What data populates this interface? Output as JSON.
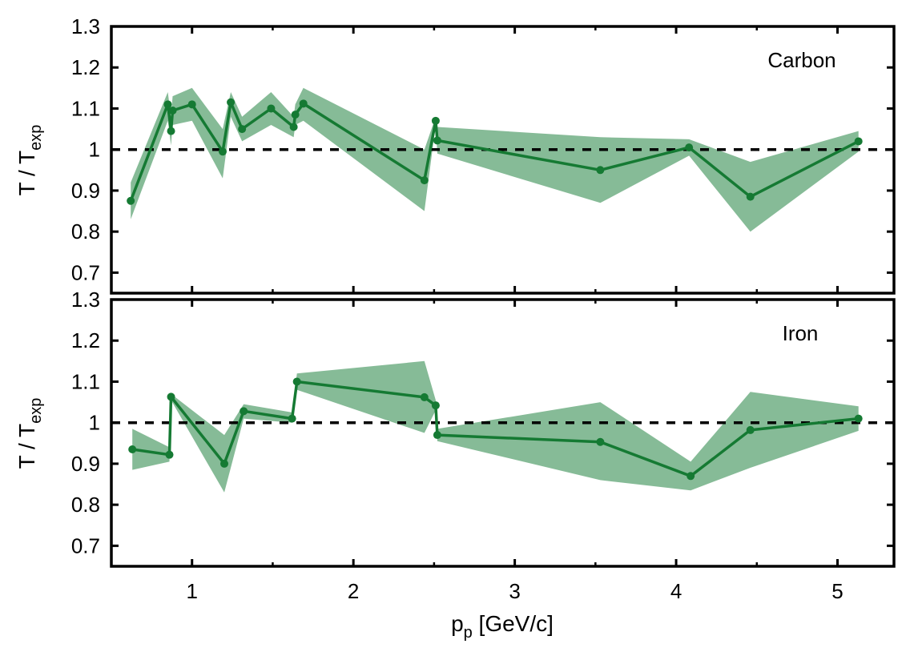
{
  "chart_data": [
    {
      "type": "line",
      "annotation": "Carbon",
      "ylabel": {
        "main": "T / T",
        "sub": "exp"
      },
      "xlim": [
        0.5,
        5.35
      ],
      "ylim": [
        0.65,
        1.3
      ],
      "yticks": [
        "0.7",
        "0.8",
        "0.9",
        "1",
        "1.1",
        "1.2",
        "1.3"
      ],
      "reference_line": 1.0,
      "color": "#157a33",
      "band_color": "#86bb97",
      "series": [
        {
          "points": [
            {
              "x": 0.62,
              "y": 0.875,
              "lo": 0.83,
              "hi": 0.92
            },
            {
              "x": 0.85,
              "y": 1.11,
              "lo": 1.07,
              "hi": 1.14
            },
            {
              "x": 0.87,
              "y": 1.045,
              "lo": 1.01,
              "hi": 1.08
            },
            {
              "x": 0.88,
              "y": 1.095,
              "lo": 1.06,
              "hi": 1.13
            },
            {
              "x": 1.0,
              "y": 1.11,
              "lo": 1.07,
              "hi": 1.15
            },
            {
              "x": 1.19,
              "y": 0.995,
              "lo": 0.93,
              "hi": 1.05
            },
            {
              "x": 1.24,
              "y": 1.115,
              "lo": 1.08,
              "hi": 1.14
            },
            {
              "x": 1.31,
              "y": 1.05,
              "lo": 1.02,
              "hi": 1.08
            },
            {
              "x": 1.49,
              "y": 1.1,
              "lo": 1.06,
              "hi": 1.14
            },
            {
              "x": 1.63,
              "y": 1.055,
              "lo": 1.03,
              "hi": 1.08
            },
            {
              "x": 1.64,
              "y": 1.085,
              "lo": 1.06,
              "hi": 1.11
            },
            {
              "x": 1.69,
              "y": 1.112,
              "lo": 1.07,
              "hi": 1.15
            },
            {
              "x": 2.44,
              "y": 0.925,
              "lo": 0.85,
              "hi": 1.0
            },
            {
              "x": 2.51,
              "y": 1.07,
              "lo": 1.06,
              "hi": 1.08
            },
            {
              "x": 2.52,
              "y": 1.022,
              "lo": 0.99,
              "hi": 1.055
            },
            {
              "x": 3.53,
              "y": 0.95,
              "lo": 0.87,
              "hi": 1.03
            },
            {
              "x": 4.08,
              "y": 1.005,
              "lo": 0.985,
              "hi": 1.025
            },
            {
              "x": 4.46,
              "y": 0.885,
              "lo": 0.8,
              "hi": 0.97
            },
            {
              "x": 5.13,
              "y": 1.02,
              "lo": 0.995,
              "hi": 1.045
            }
          ]
        }
      ]
    },
    {
      "type": "line",
      "annotation": "Iron",
      "ylabel": {
        "main": "T / T",
        "sub": "exp"
      },
      "xlabel": {
        "main": "p",
        "sub": "p",
        "rest": " [GeV/c]"
      },
      "xlim": [
        0.5,
        5.35
      ],
      "ylim": [
        0.65,
        1.3
      ],
      "yticks": [
        "0.7",
        "0.8",
        "0.9",
        "1",
        "1.1",
        "1.2",
        "1.3"
      ],
      "xticks": [
        "1",
        "2",
        "3",
        "4",
        "5"
      ],
      "reference_line": 1.0,
      "color": "#157a33",
      "band_color": "#86bb97",
      "series": [
        {
          "points": [
            {
              "x": 0.63,
              "y": 0.935,
              "lo": 0.885,
              "hi": 0.985
            },
            {
              "x": 0.86,
              "y": 0.922,
              "lo": 0.905,
              "hi": 0.94
            },
            {
              "x": 0.87,
              "y": 1.063,
              "lo": 1.055,
              "hi": 1.07
            },
            {
              "x": 1.2,
              "y": 0.9,
              "lo": 0.83,
              "hi": 0.97
            },
            {
              "x": 1.32,
              "y": 1.028,
              "lo": 1.01,
              "hi": 1.045
            },
            {
              "x": 1.62,
              "y": 1.01,
              "lo": 1.0,
              "hi": 1.025
            },
            {
              "x": 1.65,
              "y": 1.1,
              "lo": 1.08,
              "hi": 1.12
            },
            {
              "x": 2.44,
              "y": 1.062,
              "lo": 0.975,
              "hi": 1.15
            },
            {
              "x": 2.51,
              "y": 1.042,
              "lo": 1.03,
              "hi": 1.055
            },
            {
              "x": 2.52,
              "y": 0.97,
              "lo": 0.955,
              "hi": 0.985
            },
            {
              "x": 3.53,
              "y": 0.953,
              "lo": 0.86,
              "hi": 1.05
            },
            {
              "x": 4.09,
              "y": 0.87,
              "lo": 0.835,
              "hi": 0.905
            },
            {
              "x": 4.46,
              "y": 0.982,
              "lo": 0.89,
              "hi": 1.075
            },
            {
              "x": 5.13,
              "y": 1.01,
              "lo": 0.98,
              "hi": 1.04
            }
          ]
        }
      ]
    }
  ]
}
